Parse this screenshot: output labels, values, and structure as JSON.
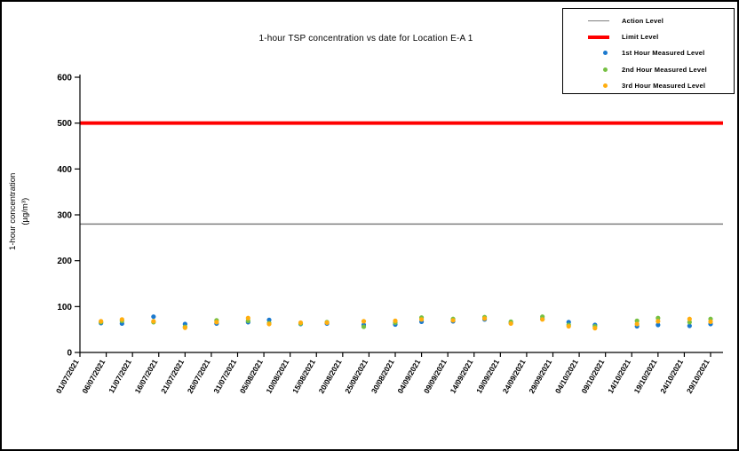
{
  "chart_data": {
    "type": "scatter",
    "title": "1-hour TSP concentration vs date for Location E-A 1",
    "ylabel": "1-hour concentration (µg/m³)",
    "ylabel_lines": [
      "1-hour concentration",
      "(µg/m³)"
    ],
    "xlabel": "",
    "ylim": [
      0,
      600
    ],
    "yticks": [
      0,
      100,
      200,
      300,
      400,
      500,
      600
    ],
    "grid": false,
    "legend_position": "top-right",
    "x_tick_interval_days": 5,
    "x_tick_labels": [
      "01/07/2021",
      "06/07/2021",
      "11/07/2021",
      "16/07/2021",
      "21/07/2021",
      "26/07/2021",
      "31/07/2021",
      "05/08/2021",
      "10/08/2021",
      "15/08/2021",
      "20/08/2021",
      "25/08/2021",
      "30/08/2021",
      "04/09/2021",
      "09/09/2021",
      "14/09/2021",
      "19/09/2021",
      "24/09/2021",
      "29/09/2021",
      "04/10/2021",
      "09/10/2021",
      "14/10/2021",
      "19/10/2021",
      "24/10/2021",
      "29/10/2021"
    ],
    "reference_lines": [
      {
        "label": "Action Level",
        "value": 280,
        "color": "#7F7F7F",
        "thickness": 1.5
      },
      {
        "label": "Limit Level",
        "value": 500,
        "color": "#FF0000",
        "thickness": 4
      }
    ],
    "dates": [
      "05/07/2021",
      "09/07/2021",
      "15/07/2021",
      "21/07/2021",
      "27/07/2021",
      "02/08/2021",
      "06/08/2021",
      "12/08/2021",
      "17/08/2021",
      "24/08/2021",
      "30/08/2021",
      "04/09/2021",
      "10/09/2021",
      "16/09/2021",
      "21/09/2021",
      "27/09/2021",
      "02/10/2021",
      "07/10/2021",
      "15/10/2021",
      "19/10/2021",
      "25/10/2021",
      "29/10/2021"
    ],
    "series": [
      {
        "name": "1st Hour Measured Level",
        "color": "#1B79CE",
        "marker": "dot",
        "values": [
          64,
          63,
          78,
          62,
          63,
          66,
          71,
          62,
          63,
          60,
          61,
          67,
          68,
          72,
          64,
          73,
          66,
          60,
          57,
          60,
          58,
          62
        ]
      },
      {
        "name": "2nd Hour Measured Level",
        "color": "#76C043",
        "marker": "dot",
        "values": [
          66,
          69,
          66,
          56,
          70,
          69,
          64,
          63,
          66,
          56,
          65,
          76,
          73,
          77,
          67,
          78,
          60,
          57,
          69,
          75,
          66,
          73
        ]
      },
      {
        "name": "3rd Hour Measured Level",
        "color": "#FFAE0F",
        "marker": "dot",
        "values": [
          68,
          72,
          68,
          54,
          66,
          75,
          62,
          65,
          65,
          68,
          69,
          72,
          70,
          74,
          63,
          72,
          57,
          53,
          62,
          68,
          73,
          67
        ]
      }
    ],
    "axis_color": "#000000",
    "background_color": "#FFFFFF"
  }
}
